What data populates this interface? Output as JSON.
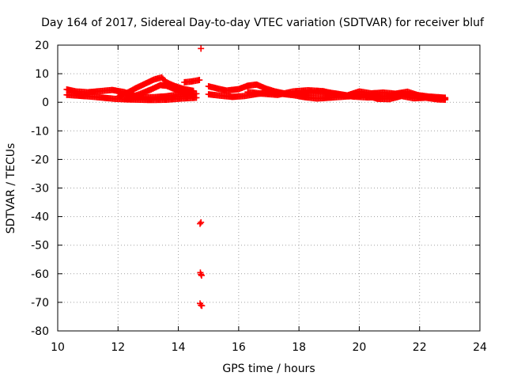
{
  "chart_data": {
    "type": "scatter",
    "title": "Day 164 of 2017, Sidereal Day-to-day VTEC variation (SDTVAR) for receiver bluf",
    "xlabel": "GPS time / hours",
    "ylabel": "SDTVAR / TECUs",
    "xlim": [
      10,
      24
    ],
    "ylim": [
      -80,
      20
    ],
    "grid": true,
    "x_ticks": [
      "10",
      "12",
      "14",
      "16",
      "18",
      "20",
      "22",
      "24"
    ],
    "y_ticks": [
      "20",
      "10",
      "0",
      "-10",
      "-20",
      "-30",
      "-40",
      "-50",
      "-60",
      "-70",
      "-80"
    ],
    "series": [
      {
        "name": "SDTVAR",
        "color": "#ff0000",
        "marker": "plus",
        "bands": [
          [
            [
              10.3,
              4.5
            ],
            [
              10.6,
              3.8
            ],
            [
              11.0,
              3.5
            ],
            [
              11.4,
              3.9
            ],
            [
              11.8,
              4.3
            ],
            [
              12.2,
              3.6
            ],
            [
              12.5,
              2.4
            ],
            [
              12.8,
              1.8
            ],
            [
              13.2,
              1.8
            ],
            [
              13.6,
              2.1
            ],
            [
              14.0,
              2.7
            ],
            [
              14.6,
              3.0
            ]
          ],
          [
            [
              10.3,
              2.6
            ],
            [
              10.7,
              2.3
            ],
            [
              11.1,
              2.0
            ],
            [
              11.5,
              1.6
            ],
            [
              11.9,
              1.2
            ],
            [
              12.3,
              1.0
            ],
            [
              12.7,
              0.9
            ],
            [
              13.1,
              0.8
            ],
            [
              13.6,
              0.9
            ],
            [
              14.1,
              1.3
            ],
            [
              14.6,
              1.6
            ]
          ],
          [
            [
              12.0,
              2.0
            ],
            [
              12.3,
              3.3
            ],
            [
              12.6,
              5.0
            ],
            [
              12.9,
              6.5
            ],
            [
              13.2,
              8.0
            ],
            [
              13.45,
              8.7
            ],
            [
              13.6,
              7.0
            ],
            [
              13.9,
              5.6
            ],
            [
              14.2,
              4.6
            ],
            [
              14.5,
              4.0
            ]
          ],
          [
            [
              12.3,
              1.4
            ],
            [
              12.7,
              2.8
            ],
            [
              13.1,
              4.5
            ],
            [
              13.4,
              6.0
            ],
            [
              13.6,
              5.8
            ],
            [
              13.9,
              4.5
            ],
            [
              14.2,
              3.5
            ],
            [
              14.5,
              2.5
            ]
          ],
          [
            [
              14.2,
              7.0
            ],
            [
              14.45,
              7.3
            ],
            [
              14.7,
              7.8
            ]
          ],
          [
            [
              15.0,
              5.6
            ],
            [
              15.3,
              4.8
            ],
            [
              15.6,
              4.1
            ],
            [
              16.0,
              4.6
            ],
            [
              16.3,
              5.8
            ],
            [
              16.6,
              6.2
            ],
            [
              16.9,
              4.8
            ],
            [
              17.2,
              3.8
            ],
            [
              17.6,
              2.9
            ],
            [
              18.0,
              2.8
            ],
            [
              18.4,
              3.4
            ],
            [
              18.8,
              3.6
            ],
            [
              19.2,
              3.1
            ],
            [
              19.6,
              2.4
            ],
            [
              20.0,
              3.8
            ],
            [
              20.4,
              3.1
            ],
            [
              20.8,
              3.4
            ],
            [
              21.2,
              3.0
            ],
            [
              21.6,
              3.7
            ],
            [
              22.0,
              2.3
            ],
            [
              22.4,
              1.6
            ],
            [
              22.85,
              1.3
            ]
          ],
          [
            [
              15.0,
              2.8
            ],
            [
              15.4,
              2.3
            ],
            [
              15.8,
              1.9
            ],
            [
              16.2,
              2.2
            ],
            [
              16.6,
              2.9
            ],
            [
              17.0,
              3.4
            ],
            [
              17.4,
              3.0
            ],
            [
              17.8,
              2.5
            ],
            [
              18.2,
              1.8
            ],
            [
              18.6,
              1.3
            ],
            [
              19.0,
              1.6
            ],
            [
              19.4,
              1.9
            ],
            [
              19.8,
              2.2
            ],
            [
              20.2,
              2.6
            ],
            [
              20.6,
              1.2
            ],
            [
              21.0,
              1.1
            ],
            [
              21.4,
              2.2
            ],
            [
              21.8,
              1.4
            ],
            [
              22.2,
              1.6
            ],
            [
              22.6,
              1.0
            ],
            [
              22.85,
              0.9
            ]
          ],
          [
            [
              16.3,
              3.6
            ],
            [
              16.8,
              3.0
            ],
            [
              17.3,
              2.6
            ],
            [
              17.8,
              3.8
            ],
            [
              18.3,
              4.2
            ],
            [
              18.8,
              3.9
            ],
            [
              19.3,
              2.7
            ],
            [
              19.8,
              2.0
            ],
            [
              20.3,
              1.7
            ],
            [
              20.8,
              1.9
            ],
            [
              21.3,
              3.0
            ],
            [
              21.8,
              2.7
            ],
            [
              22.3,
              2.0
            ],
            [
              22.85,
              1.6
            ]
          ]
        ],
        "points": [
          [
            14.75,
            18.8
          ],
          [
            14.75,
            -42.0
          ],
          [
            14.72,
            -42.5
          ],
          [
            14.73,
            -59.6
          ],
          [
            14.75,
            -60.2
          ],
          [
            14.77,
            -60.6
          ],
          [
            14.72,
            -70.4
          ],
          [
            14.75,
            -71.0
          ],
          [
            14.78,
            -71.2
          ]
        ]
      }
    ]
  }
}
